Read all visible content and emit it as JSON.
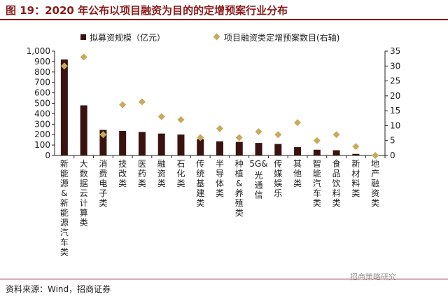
{
  "header": {
    "title": "图 19：2020 年公布以项目融资为目的的定增预案行业分布"
  },
  "footer": {
    "source": "资料来源：Wind，招商证券",
    "watermark": "招商策略研究"
  },
  "chart_data": {
    "type": "bar",
    "title": "",
    "colors": {
      "bar": "#3a1310",
      "marker": "#c9a95a"
    },
    "legend_position": "top",
    "grid": false,
    "categories": [
      "新能源&新能源汽车类",
      "大数据云计算类",
      "消费电子类",
      "技改类",
      "医药类",
      "融资类",
      "石化类",
      "传统基建类",
      "半导体类",
      "种植&养殖类",
      "5G&光通信",
      "传媒娱乐",
      "其他类",
      "智能汽车类",
      "食品饮料类",
      "新材料类",
      "地产融资类"
    ],
    "series": [
      {
        "name": "拟募资规模（亿元）",
        "type": "bar",
        "axis": "left",
        "values": [
          920,
          480,
          245,
          235,
          225,
          210,
          200,
          155,
          135,
          130,
          120,
          110,
          80,
          55,
          50,
          15,
          2
        ]
      },
      {
        "name": "项目融资类定增预案数目(右轴)",
        "type": "scatter",
        "axis": "right",
        "values": [
          30,
          33,
          7,
          17,
          18,
          13,
          12,
          6,
          9,
          6,
          8,
          7,
          11,
          5,
          7,
          3,
          0
        ]
      }
    ],
    "y_left": {
      "range": [
        0,
        1000
      ],
      "ticks": [
        0,
        100,
        200,
        300,
        400,
        500,
        600,
        700,
        800,
        900,
        1000
      ],
      "tick_labels": [
        "0",
        "100",
        "200",
        "300",
        "400",
        "500",
        "600",
        "700",
        "800",
        "900",
        "1,000"
      ]
    },
    "y_right": {
      "range": [
        0,
        35
      ],
      "ticks": [
        0,
        5,
        10,
        15,
        20,
        25,
        30,
        35
      ],
      "tick_labels": [
        "0",
        "5",
        "10",
        "15",
        "20",
        "25",
        "30",
        "35"
      ]
    }
  }
}
